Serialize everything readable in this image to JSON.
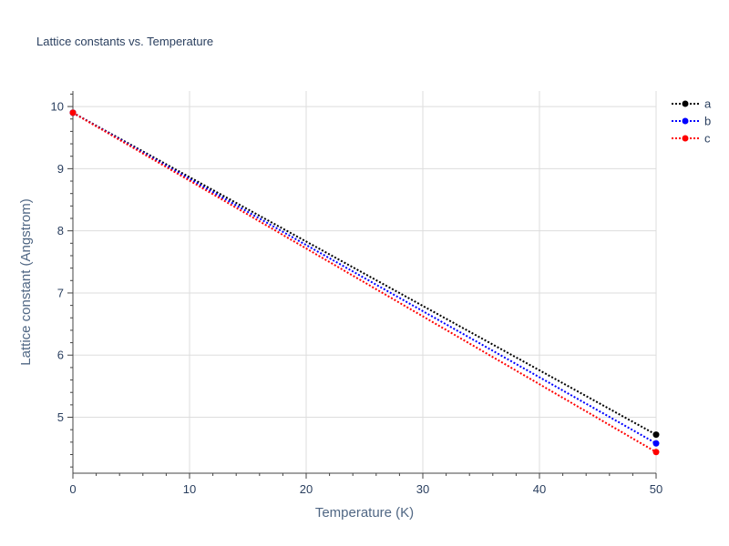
{
  "chart_data": {
    "type": "line",
    "title": "Lattice constants vs. Temperature",
    "xlabel": "Temperature (K)",
    "ylabel": "Lattice constant (Angstrom)",
    "xlim": [
      0,
      50
    ],
    "ylim": [
      4.1,
      10.25
    ],
    "xticks": [
      0,
      10,
      20,
      30,
      40,
      50
    ],
    "yticks": [
      5,
      6,
      7,
      8,
      9,
      10
    ],
    "grid": true,
    "legend_position": "top-right",
    "series": [
      {
        "name": "a",
        "color": "#000000",
        "x": [
          0,
          50
        ],
        "y": [
          9.9,
          4.72
        ]
      },
      {
        "name": "b",
        "color": "#0000ff",
        "x": [
          0,
          50
        ],
        "y": [
          9.9,
          4.58
        ]
      },
      {
        "name": "c",
        "color": "#ff0000",
        "x": [
          0,
          50
        ],
        "y": [
          9.9,
          4.44
        ]
      }
    ]
  }
}
